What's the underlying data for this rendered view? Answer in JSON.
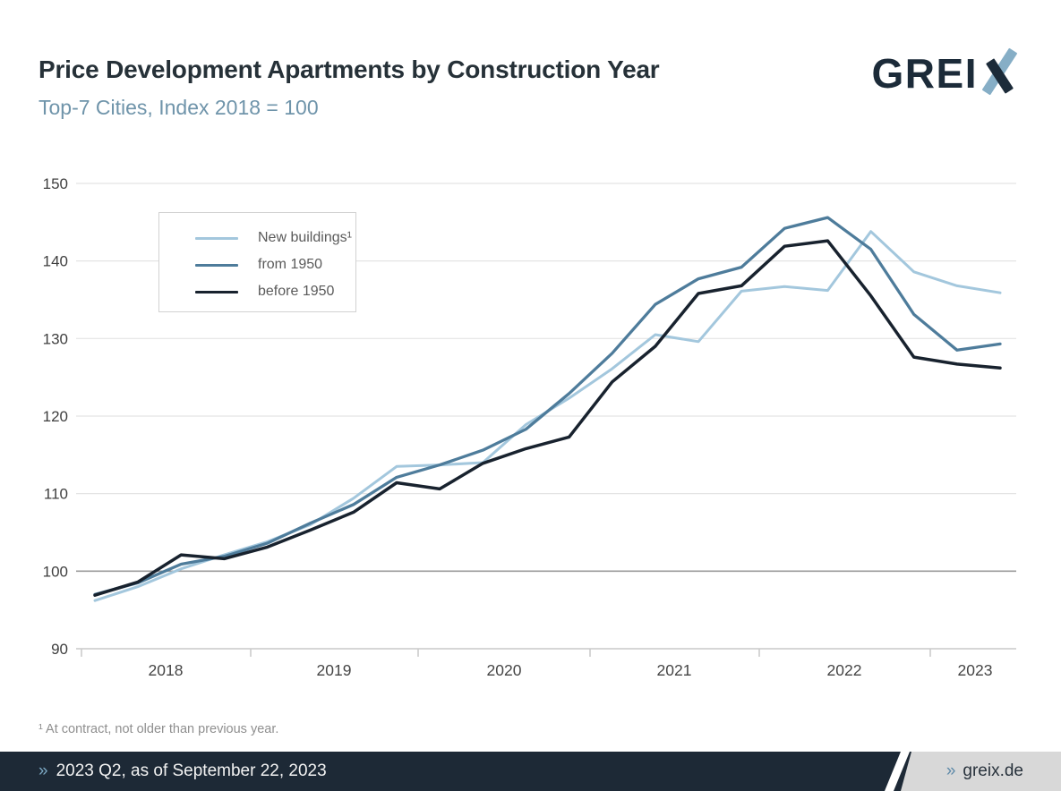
{
  "header": {
    "title": "Price Development Apartments by Construction Year",
    "subtitle": "Top-7 Cities, Index 2018 = 100",
    "logo_text": "GREI",
    "logo_x": "X"
  },
  "chart_data": {
    "type": "line",
    "title": "Price Development Apartments by Construction Year",
    "subtitle": "Top-7 Cities, Index 2018 = 100",
    "categories": [
      "2018 Q1",
      "2018 Q2",
      "2018 Q3",
      "2018 Q4",
      "2019 Q1",
      "2019 Q2",
      "2019 Q3",
      "2019 Q4",
      "2020 Q1",
      "2020 Q2",
      "2020 Q3",
      "2020 Q4",
      "2021 Q1",
      "2021 Q2",
      "2021 Q3",
      "2021 Q4",
      "2022 Q1",
      "2022 Q2",
      "2022 Q3",
      "2022 Q4",
      "2023 Q1",
      "2023 Q2"
    ],
    "series": [
      {
        "name": "New buildings¹",
        "color": "#a3c7dd",
        "values": [
          96.2,
          98.0,
          100.3,
          102.1,
          103.8,
          106.0,
          109.4,
          113.5,
          113.7,
          114.0,
          118.9,
          122.3,
          126.1,
          130.5,
          129.6,
          136.1,
          136.7,
          136.2,
          143.8,
          138.6,
          136.8,
          135.9
        ]
      },
      {
        "name": "from 1950",
        "color": "#4e7c9b",
        "values": [
          97.0,
          98.5,
          100.9,
          101.9,
          103.6,
          106.2,
          108.6,
          112.1,
          113.7,
          115.6,
          118.3,
          122.9,
          128.1,
          134.4,
          137.7,
          139.2,
          144.2,
          145.6,
          141.5,
          133.1,
          128.5,
          129.3
        ]
      },
      {
        "name": "before 1950",
        "color": "#18222e",
        "values": [
          96.9,
          98.6,
          102.1,
          101.6,
          103.1,
          105.3,
          107.6,
          111.4,
          110.6,
          113.9,
          115.8,
          117.3,
          124.4,
          129.0,
          135.8,
          136.8,
          141.9,
          142.6,
          135.5,
          127.6,
          126.7,
          126.2
        ]
      }
    ],
    "yticks": [
      90,
      100,
      110,
      120,
      130,
      140,
      150
    ],
    "ylim": [
      90,
      150
    ],
    "xtick_labels": [
      "2018",
      "2019",
      "2020",
      "2021",
      "2022",
      "2023"
    ],
    "legend_position": "top-left",
    "grid": "horizontal",
    "baseline_value": 100
  },
  "footnote": "¹ At contract, not older than previous year.",
  "footer": {
    "left_marker": "»",
    "left_text": "2023 Q2, as of September 22, 2023",
    "right_marker": "»",
    "right_text": "greix.de"
  },
  "colors": {
    "title": "#263138",
    "subtitle": "#6f94aa",
    "grid": "#e4e4e4",
    "grid_baseline": "#9b9b9b",
    "axis": "#c9c9c9",
    "footer_bg": "#1d2936",
    "footer_gray": "#d8d8d8",
    "marker_blue": "#7ba7c2",
    "logo_dark": "#1c2b39",
    "logo_blue": "#86aec6"
  }
}
